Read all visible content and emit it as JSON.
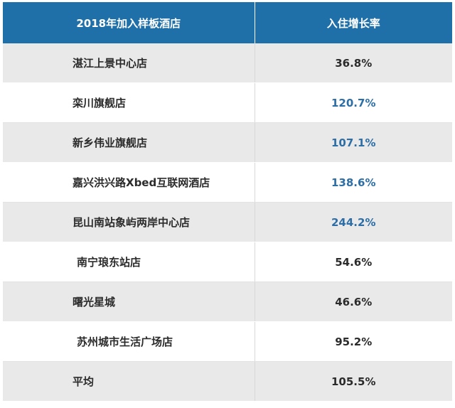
{
  "table": {
    "headers": [
      "2018年加入样板酒店",
      "入住增长率"
    ],
    "rows": [
      {
        "name": "湛江上景中心店",
        "rate": "36.8%",
        "highlight": false,
        "indent": false
      },
      {
        "name": "栾川旗舰店",
        "rate": "120.7%",
        "highlight": true,
        "indent": false
      },
      {
        "name": "新乡伟业旗舰店",
        "rate": "107.1%",
        "highlight": true,
        "indent": false
      },
      {
        "name": "嘉兴洪兴路Xbed互联网酒店",
        "rate": "138.6%",
        "highlight": true,
        "indent": false
      },
      {
        "name": "昆山南站象屿两岸中心店",
        "rate": "244.2%",
        "highlight": true,
        "indent": false
      },
      {
        "name": "南宁琅东站店",
        "rate": "54.6%",
        "highlight": false,
        "indent": true
      },
      {
        "name": "曙光星城",
        "rate": "46.6%",
        "highlight": false,
        "indent": false
      },
      {
        "name": "苏州城市生活广场店",
        "rate": "95.2%",
        "highlight": false,
        "indent": true
      },
      {
        "name": "平均",
        "rate": "105.5%",
        "highlight": false,
        "indent": false
      }
    ]
  },
  "colors": {
    "header_bg": "#1f6fa8",
    "highlight_text": "#2c6ea5",
    "stripe_bg": "#e9e9e9"
  }
}
